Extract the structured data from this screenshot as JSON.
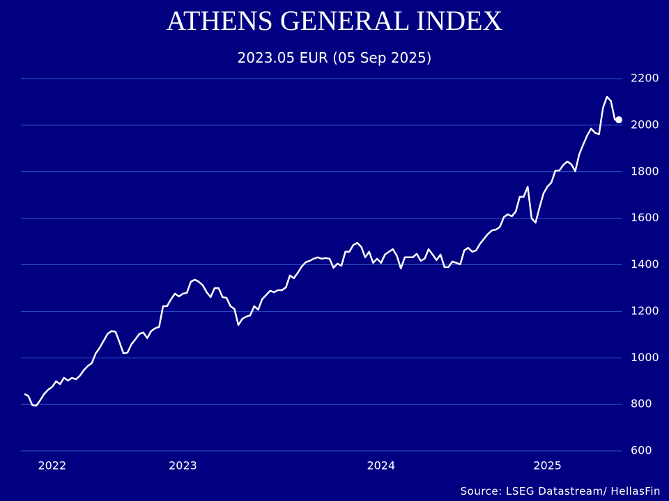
{
  "chart_data": {
    "type": "line",
    "title": "ATHENS GENERAL INDEX",
    "subtitle": "2023.05 EUR (05 Sep 2025)",
    "source": "Source: LSEG Datastream/ HellasFin",
    "categories": [
      null,
      null,
      null,
      null,
      null,
      null,
      null,
      "2022",
      null,
      null,
      null,
      null,
      null,
      null,
      null,
      null,
      null,
      null,
      null,
      null,
      null,
      null,
      null,
      null,
      null,
      null,
      null,
      null,
      null,
      null,
      null,
      null,
      null,
      null,
      null,
      null,
      null,
      null,
      null,
      null,
      "2023",
      null,
      null,
      null,
      null,
      null,
      null,
      null,
      null,
      null,
      null,
      null,
      null,
      null,
      null,
      null,
      null,
      null,
      null,
      null,
      null,
      null,
      null,
      null,
      null,
      null,
      null,
      null,
      null,
      null,
      null,
      null,
      null,
      null,
      null,
      null,
      null,
      null,
      null,
      null,
      null,
      null,
      null,
      null,
      null,
      null,
      null,
      null,
      null,
      null,
      "2024",
      null,
      null,
      null,
      null,
      null,
      null,
      null,
      null,
      null,
      null,
      null,
      null,
      null,
      null,
      null,
      null,
      null,
      null,
      null,
      null,
      null,
      null,
      null,
      null,
      null,
      null,
      null,
      null,
      null,
      null,
      null,
      null,
      null,
      null,
      null,
      null,
      null,
      null,
      null,
      null,
      null,
      "2025",
      null,
      null,
      null,
      null,
      null,
      null,
      null,
      null,
      null,
      null,
      null,
      null,
      null,
      null,
      null,
      null,
      null,
      null
    ],
    "series": [
      {
        "name": "Athens General Index",
        "color": "#ffffff",
        "values": [
          845,
          836,
          797,
          794,
          818,
          845,
          863,
          875,
          899,
          887,
          914,
          902,
          914,
          908,
          923,
          947,
          965,
          977,
          1019,
          1043,
          1073,
          1103,
          1115,
          1112,
          1067,
          1019,
          1022,
          1058,
          1079,
          1103,
          1109,
          1085,
          1115,
          1127,
          1133,
          1222,
          1222,
          1252,
          1276,
          1264,
          1276,
          1279,
          1327,
          1336,
          1327,
          1312,
          1282,
          1261,
          1300,
          1300,
          1261,
          1258,
          1222,
          1210,
          1141,
          1168,
          1177,
          1183,
          1222,
          1207,
          1252,
          1270,
          1288,
          1282,
          1291,
          1291,
          1303,
          1354,
          1342,
          1366,
          1393,
          1411,
          1417,
          1426,
          1432,
          1426,
          1429,
          1426,
          1387,
          1405,
          1396,
          1456,
          1456,
          1485,
          1494,
          1477,
          1432,
          1456,
          1408,
          1426,
          1408,
          1444,
          1456,
          1467,
          1438,
          1384,
          1432,
          1432,
          1432,
          1447,
          1417,
          1426,
          1467,
          1444,
          1420,
          1444,
          1390,
          1390,
          1414,
          1408,
          1402,
          1462,
          1473,
          1456,
          1462,
          1491,
          1512,
          1533,
          1548,
          1551,
          1563,
          1605,
          1617,
          1608,
          1629,
          1692,
          1692,
          1736,
          1599,
          1581,
          1647,
          1707,
          1736,
          1754,
          1805,
          1805,
          1829,
          1844,
          1832,
          1802,
          1874,
          1916,
          1955,
          1985,
          1967,
          1961,
          2074,
          2122,
          2104,
          2024,
          2023.05
        ]
      }
    ],
    "ylim": [
      600,
      2200
    ],
    "yticks": [
      600,
      800,
      1000,
      1200,
      1400,
      1600,
      1800,
      2000,
      2200
    ],
    "grid": true,
    "grid_color": "#2f56d0",
    "end_marker": true
  }
}
